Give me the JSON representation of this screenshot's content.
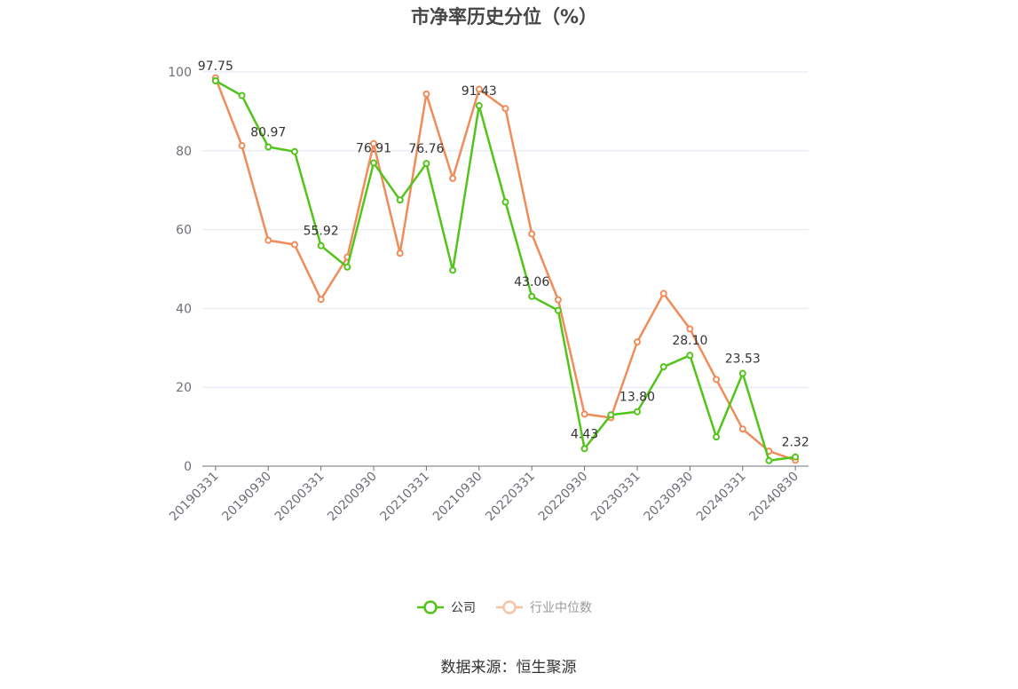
{
  "chart_data": {
    "type": "line",
    "title": "市净率历史分位（%）",
    "ylim": [
      0,
      100
    ],
    "yticks": [
      "0",
      "20",
      "40",
      "60",
      "80",
      "100"
    ],
    "xtick_labels": [
      "20190331",
      "20190930",
      "20200331",
      "20200930",
      "20210331",
      "20210930",
      "20220331",
      "20220930",
      "20230331",
      "20230930",
      "20240331",
      "20240830"
    ],
    "x": [
      "20190331",
      "20190630",
      "20190930",
      "20191231",
      "20200331",
      "20200630",
      "20200930",
      "20201231",
      "20210331",
      "20210630",
      "20210930",
      "20211231",
      "20220331",
      "20220630",
      "20220930",
      "20221231",
      "20230331",
      "20230630",
      "20230930",
      "20231231",
      "20240331",
      "20240630",
      "20240830"
    ],
    "series": [
      {
        "name": "公司",
        "color": "#52c41a",
        "values": [
          97.75,
          94.0,
          80.97,
          79.8,
          55.92,
          50.5,
          76.91,
          67.5,
          76.76,
          49.7,
          91.43,
          67.0,
          43.06,
          39.5,
          4.43,
          13.0,
          13.8,
          25.2,
          28.1,
          7.4,
          23.53,
          1.4,
          2.32
        ],
        "labels": [
          "97.75",
          "",
          "80.97",
          "",
          "55.92",
          "",
          "76.91",
          "",
          "76.76",
          "",
          "91.43",
          "",
          "43.06",
          "",
          "4.43",
          "",
          "13.80",
          "",
          "28.10",
          "",
          "23.53",
          "",
          "2.32"
        ]
      },
      {
        "name": "行业中位数",
        "color": "#f08c5a",
        "values": [
          98.5,
          81.3,
          57.3,
          56.2,
          42.3,
          53.0,
          81.8,
          54.0,
          94.4,
          73.0,
          95.6,
          90.7,
          58.9,
          42.2,
          13.2,
          12.3,
          31.5,
          43.8,
          34.8,
          22.0,
          9.4,
          3.8,
          1.5
        ]
      }
    ],
    "grid": true,
    "legend_position": "bottom-center"
  },
  "source_text": "数据来源：恒生聚源"
}
